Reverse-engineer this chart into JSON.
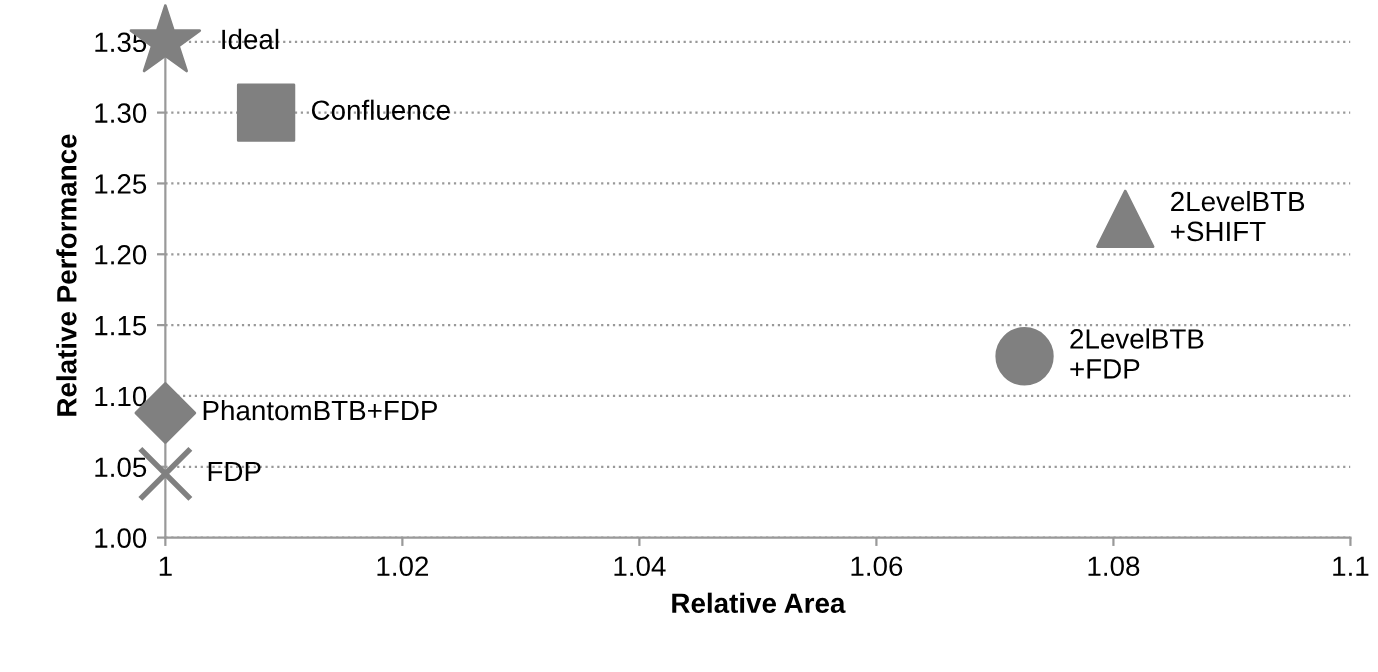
{
  "chart_data": {
    "type": "scatter",
    "xlabel": "Relative Area",
    "ylabel": "Relative Performance",
    "xlim": [
      1,
      1.1
    ],
    "ylim": [
      1,
      1.37
    ],
    "xticks": [
      1,
      1.02,
      1.04,
      1.06,
      1.08,
      1.1
    ],
    "yticks": [
      {
        "value": 1.0,
        "label": "1.00"
      },
      {
        "value": 1.05,
        "label": "1.05"
      },
      {
        "value": 1.1,
        "label": "1.10"
      },
      {
        "value": 1.15,
        "label": "1.15"
      },
      {
        "value": 1.2,
        "label": "1.20"
      },
      {
        "value": 1.25,
        "label": "1.25"
      },
      {
        "value": 1.3,
        "label": "1.30"
      },
      {
        "value": 1.35,
        "label": "1.35"
      }
    ],
    "grid": "y",
    "legend": false,
    "series": [
      {
        "name": "Ideal",
        "color": "#808080",
        "marker": "star",
        "x": [
          1.0
        ],
        "values": [
          1.35
        ]
      },
      {
        "name": "Confluence",
        "color": "#808080",
        "marker": "square",
        "x": [
          1.0085
        ],
        "values": [
          1.3
        ]
      },
      {
        "name": "2LevelBTB\n+SHIFT",
        "color": "#808080",
        "marker": "triangle",
        "x": [
          1.081
        ],
        "values": [
          1.225
        ]
      },
      {
        "name": "2LevelBTB\n+FDP",
        "color": "#808080",
        "marker": "circle",
        "x": [
          1.0725
        ],
        "values": [
          1.128
        ]
      },
      {
        "name": "PhantomBTB+FDP",
        "color": "#808080",
        "marker": "diamond",
        "x": [
          1.0
        ],
        "values": [
          1.088
        ]
      },
      {
        "name": "FDP",
        "color": "#808080",
        "marker": "cross",
        "x": [
          1.0
        ],
        "values": [
          1.045
        ]
      }
    ]
  }
}
